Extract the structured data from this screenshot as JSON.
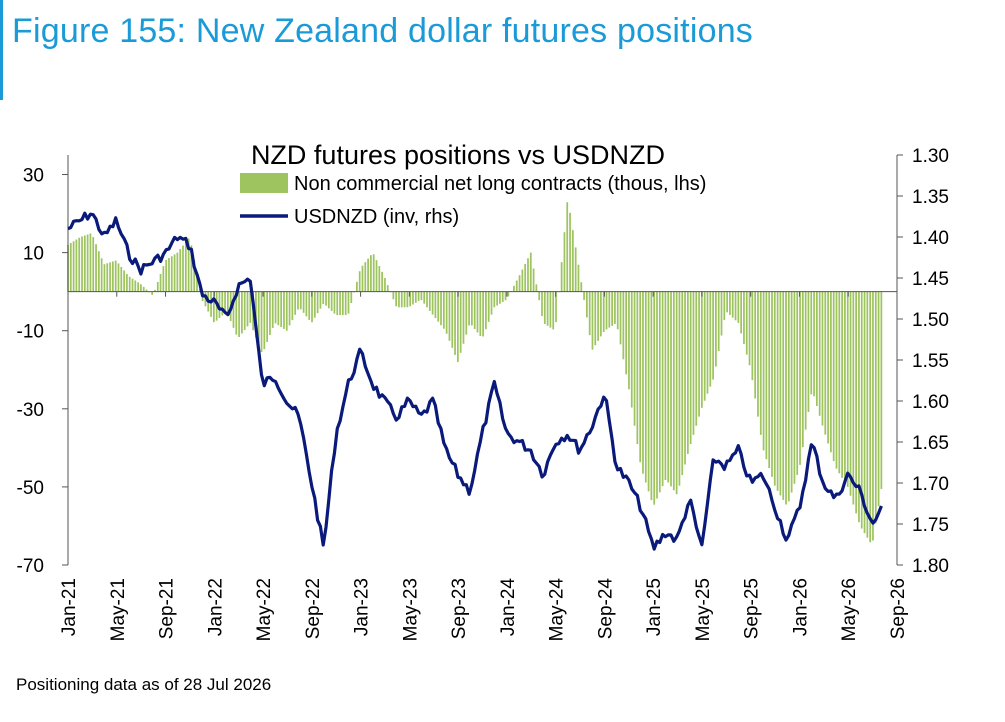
{
  "figure_title": "Figure 155: New Zealand dollar futures positions",
  "footnote": "Positioning data as of 28 Jul 2026",
  "colors": {
    "accent": "#1a9bd7",
    "bars": "#9dc45f",
    "line": "#0a1a7a"
  },
  "chart_data": {
    "type": "bar",
    "title": "NZD futures positions  vs USDNZD",
    "xlabel": "",
    "ylabel": "",
    "x_tick_labels": [
      "Jan-21",
      "May-21",
      "Sep-21",
      "Jan-22",
      "May-22",
      "Sep-22",
      "Jan-23",
      "May-23",
      "Sep-23",
      "Jan-24",
      "May-24",
      "Sep-24",
      "Jan-25",
      "May-25",
      "Sep-25",
      "Jan-26",
      "May-26",
      "Sep-26"
    ],
    "y_left": {
      "ticks": [
        30,
        10,
        -10,
        -30,
        -50,
        -70
      ],
      "ylim": [
        -70,
        35
      ]
    },
    "y_right": {
      "ticks": [
        "1.30",
        "1.35",
        "1.40",
        "1.45",
        "1.50",
        "1.55",
        "1.60",
        "1.65",
        "1.70",
        "1.75",
        "1.80"
      ],
      "ylim": [
        1.3,
        1.8
      ],
      "inverted": true
    },
    "legend": {
      "placement": "top-center",
      "entries": [
        "Non commercial net long contracts (thous, lhs)",
        "USDNZD (inv, rhs)"
      ]
    },
    "xlim": [
      "2021-01-01",
      "2026-09-01"
    ],
    "series": [
      {
        "name": "Non commercial net long contracts (thous, lhs)",
        "type": "bar",
        "axis": "left",
        "points": [
          [
            "2021-01-01",
            12
          ],
          [
            "2021-02-01",
            14
          ],
          [
            "2021-03-01",
            15
          ],
          [
            "2021-04-01",
            7
          ],
          [
            "2021-05-01",
            8
          ],
          [
            "2021-06-01",
            4
          ],
          [
            "2021-07-01",
            2
          ],
          [
            "2021-08-01",
            -1
          ],
          [
            "2021-09-01",
            8
          ],
          [
            "2021-10-01",
            10
          ],
          [
            "2021-11-01",
            14
          ],
          [
            "2021-12-01",
            -2
          ],
          [
            "2022-01-01",
            -8
          ],
          [
            "2022-02-01",
            -5
          ],
          [
            "2022-03-01",
            -12
          ],
          [
            "2022-04-01",
            -8
          ],
          [
            "2022-05-01",
            -16
          ],
          [
            "2022-06-01",
            -8
          ],
          [
            "2022-07-01",
            -10
          ],
          [
            "2022-08-01",
            -4
          ],
          [
            "2022-09-01",
            -8
          ],
          [
            "2022-10-01",
            -3
          ],
          [
            "2022-11-01",
            -6
          ],
          [
            "2022-12-01",
            -6
          ],
          [
            "2023-01-01",
            6
          ],
          [
            "2023-02-01",
            10
          ],
          [
            "2023-03-01",
            4
          ],
          [
            "2023-04-01",
            -4
          ],
          [
            "2023-05-01",
            -4
          ],
          [
            "2023-06-01",
            -2
          ],
          [
            "2023-07-01",
            -6
          ],
          [
            "2023-08-01",
            -10
          ],
          [
            "2023-09-01",
            -18
          ],
          [
            "2023-10-01",
            -8
          ],
          [
            "2023-11-01",
            -12
          ],
          [
            "2023-12-01",
            -4
          ],
          [
            "2024-01-01",
            -2
          ],
          [
            "2024-02-01",
            4
          ],
          [
            "2024-03-01",
            10
          ],
          [
            "2024-04-01",
            -8
          ],
          [
            "2024-05-01",
            -10
          ],
          [
            "2024-06-01",
            24
          ],
          [
            "2024-07-01",
            5
          ],
          [
            "2024-08-01",
            -15
          ],
          [
            "2024-09-01",
            -10
          ],
          [
            "2024-10-01",
            -8
          ],
          [
            "2024-11-01",
            -25
          ],
          [
            "2024-12-01",
            -45
          ],
          [
            "2025-01-01",
            -55
          ],
          [
            "2025-02-01",
            -48
          ],
          [
            "2025-03-01",
            -52
          ],
          [
            "2025-04-01",
            -40
          ],
          [
            "2025-05-01",
            -30
          ],
          [
            "2025-06-01",
            -22
          ],
          [
            "2025-07-01",
            -5
          ],
          [
            "2025-08-01",
            -8
          ],
          [
            "2025-09-01",
            -20
          ],
          [
            "2025-10-01",
            -40
          ],
          [
            "2025-11-01",
            -50
          ],
          [
            "2025-12-01",
            -55
          ],
          [
            "2026-01-01",
            -45
          ],
          [
            "2026-02-01",
            -25
          ],
          [
            "2026-03-01",
            -35
          ],
          [
            "2026-04-01",
            -45
          ],
          [
            "2026-05-01",
            -50
          ],
          [
            "2026-06-01",
            -60
          ],
          [
            "2026-07-01",
            -65
          ],
          [
            "2026-07-28",
            -48
          ]
        ]
      },
      {
        "name": "USDNZD (inv, rhs)",
        "type": "line",
        "axis": "right",
        "points": [
          [
            "2021-01-01",
            1.39
          ],
          [
            "2021-02-01",
            1.38
          ],
          [
            "2021-03-01",
            1.37
          ],
          [
            "2021-04-01",
            1.4
          ],
          [
            "2021-05-01",
            1.38
          ],
          [
            "2021-06-01",
            1.42
          ],
          [
            "2021-07-01",
            1.44
          ],
          [
            "2021-08-01",
            1.43
          ],
          [
            "2021-09-01",
            1.42
          ],
          [
            "2021-10-01",
            1.4
          ],
          [
            "2021-11-01",
            1.41
          ],
          [
            "2021-12-01",
            1.47
          ],
          [
            "2022-01-01",
            1.48
          ],
          [
            "2022-02-01",
            1.5
          ],
          [
            "2022-03-01",
            1.46
          ],
          [
            "2022-04-01",
            1.45
          ],
          [
            "2022-05-01",
            1.58
          ],
          [
            "2022-06-01",
            1.57
          ],
          [
            "2022-07-01",
            1.6
          ],
          [
            "2022-08-01",
            1.62
          ],
          [
            "2022-09-01",
            1.7
          ],
          [
            "2022-10-01",
            1.78
          ],
          [
            "2022-11-01",
            1.64
          ],
          [
            "2022-12-01",
            1.58
          ],
          [
            "2023-01-01",
            1.54
          ],
          [
            "2023-02-01",
            1.58
          ],
          [
            "2023-03-01",
            1.6
          ],
          [
            "2023-04-01",
            1.62
          ],
          [
            "2023-05-01",
            1.6
          ],
          [
            "2023-06-01",
            1.62
          ],
          [
            "2023-07-01",
            1.6
          ],
          [
            "2023-08-01",
            1.66
          ],
          [
            "2023-09-01",
            1.69
          ],
          [
            "2023-10-01",
            1.71
          ],
          [
            "2023-11-01",
            1.64
          ],
          [
            "2023-12-01",
            1.58
          ],
          [
            "2024-01-01",
            1.64
          ],
          [
            "2024-02-01",
            1.65
          ],
          [
            "2024-03-01",
            1.66
          ],
          [
            "2024-04-01",
            1.69
          ],
          [
            "2024-05-01",
            1.65
          ],
          [
            "2024-06-01",
            1.64
          ],
          [
            "2024-07-01",
            1.66
          ],
          [
            "2024-08-01",
            1.63
          ],
          [
            "2024-09-01",
            1.59
          ],
          [
            "2024-10-01",
            1.68
          ],
          [
            "2024-11-01",
            1.7
          ],
          [
            "2024-12-01",
            1.73
          ],
          [
            "2025-01-01",
            1.78
          ],
          [
            "2025-02-01",
            1.76
          ],
          [
            "2025-03-01",
            1.77
          ],
          [
            "2025-04-01",
            1.72
          ],
          [
            "2025-05-01",
            1.78
          ],
          [
            "2025-06-01",
            1.67
          ],
          [
            "2025-07-01",
            1.68
          ],
          [
            "2025-08-01",
            1.66
          ],
          [
            "2025-09-01",
            1.7
          ],
          [
            "2025-10-01",
            1.69
          ],
          [
            "2025-11-01",
            1.73
          ],
          [
            "2025-12-01",
            1.77
          ],
          [
            "2026-01-01",
            1.73
          ],
          [
            "2026-02-01",
            1.65
          ],
          [
            "2026-03-01",
            1.7
          ],
          [
            "2026-04-01",
            1.72
          ],
          [
            "2026-05-01",
            1.69
          ],
          [
            "2026-06-01",
            1.71
          ],
          [
            "2026-07-01",
            1.75
          ],
          [
            "2026-07-28",
            1.73
          ]
        ]
      }
    ]
  }
}
